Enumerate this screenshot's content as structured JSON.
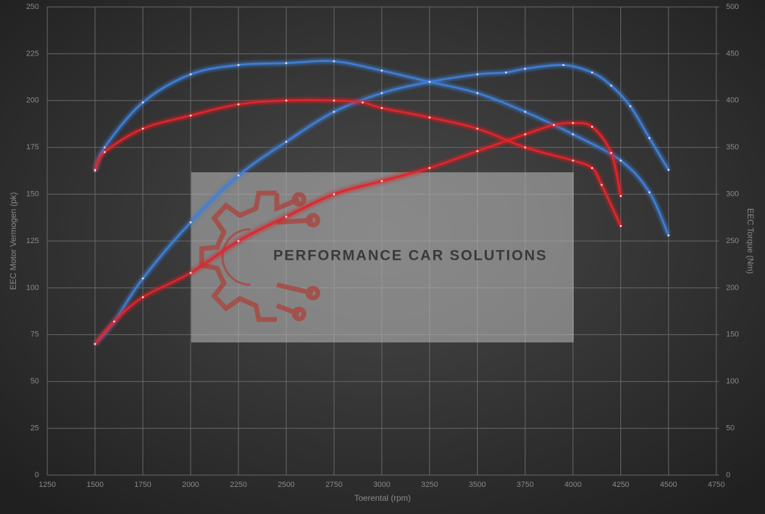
{
  "chart_data": {
    "type": "line",
    "xlabel": "Toerental (rpm)",
    "ylabel": "EEC Motor Vermogen (pk)",
    "y2label": "EEC Torque (Nm)",
    "watermark": "PERFORMANCE CAR SOLUTIONS",
    "xlim": [
      1250,
      4750
    ],
    "xticks": [
      1250,
      1500,
      1750,
      2000,
      2250,
      2500,
      2750,
      3000,
      3250,
      3500,
      3750,
      4000,
      4250,
      4500,
      4750
    ],
    "ylim": [
      0,
      250
    ],
    "yticks": [
      0,
      25,
      50,
      75,
      100,
      125,
      150,
      175,
      200,
      225,
      250
    ],
    "y2lim": [
      0,
      500
    ],
    "y2ticks": [
      0,
      50,
      100,
      150,
      200,
      250,
      300,
      350,
      400,
      450,
      500
    ],
    "grid": true,
    "series": [
      {
        "color": "#3f7fd6",
        "axis": "y",
        "x": [
          1500,
          1600,
          1750,
          2000,
          2250,
          2500,
          2750,
          3000,
          3250,
          3500,
          3650,
          3750,
          3950,
          4100,
          4200,
          4300,
          4400,
          4500
        ],
        "values": [
          70,
          82,
          105,
          135,
          160,
          178,
          194,
          204,
          210,
          214,
          215,
          217,
          219,
          215,
          208,
          197,
          180,
          163
        ]
      },
      {
        "color": "#3f7fd6",
        "axis": "y2",
        "x": [
          1500,
          1550,
          1750,
          2000,
          2250,
          2500,
          2750,
          3000,
          3250,
          3500,
          3750,
          4000,
          4250,
          4400,
          4500
        ],
        "values": [
          325,
          350,
          398,
          428,
          438,
          440,
          442,
          432,
          420,
          408,
          388,
          364,
          336,
          302,
          256
        ]
      },
      {
        "color": "#e0262a",
        "axis": "y",
        "x": [
          1500,
          1600,
          1750,
          2000,
          2250,
          2500,
          2750,
          3000,
          3250,
          3500,
          3750,
          3900,
          4000,
          4100,
          4200,
          4250
        ],
        "values": [
          70,
          82,
          95,
          108,
          125,
          138,
          150,
          157,
          164,
          173,
          182,
          187,
          188,
          186,
          172,
          149
        ]
      },
      {
        "color": "#e0262a",
        "axis": "y2",
        "x": [
          1500,
          1550,
          1750,
          2000,
          2250,
          2500,
          2750,
          2900,
          3000,
          3250,
          3500,
          3750,
          4000,
          4100,
          4150,
          4250
        ],
        "values": [
          326,
          345,
          370,
          384,
          396,
          400,
          400,
          398,
          392,
          382,
          370,
          350,
          336,
          328,
          310,
          266
        ]
      }
    ]
  }
}
